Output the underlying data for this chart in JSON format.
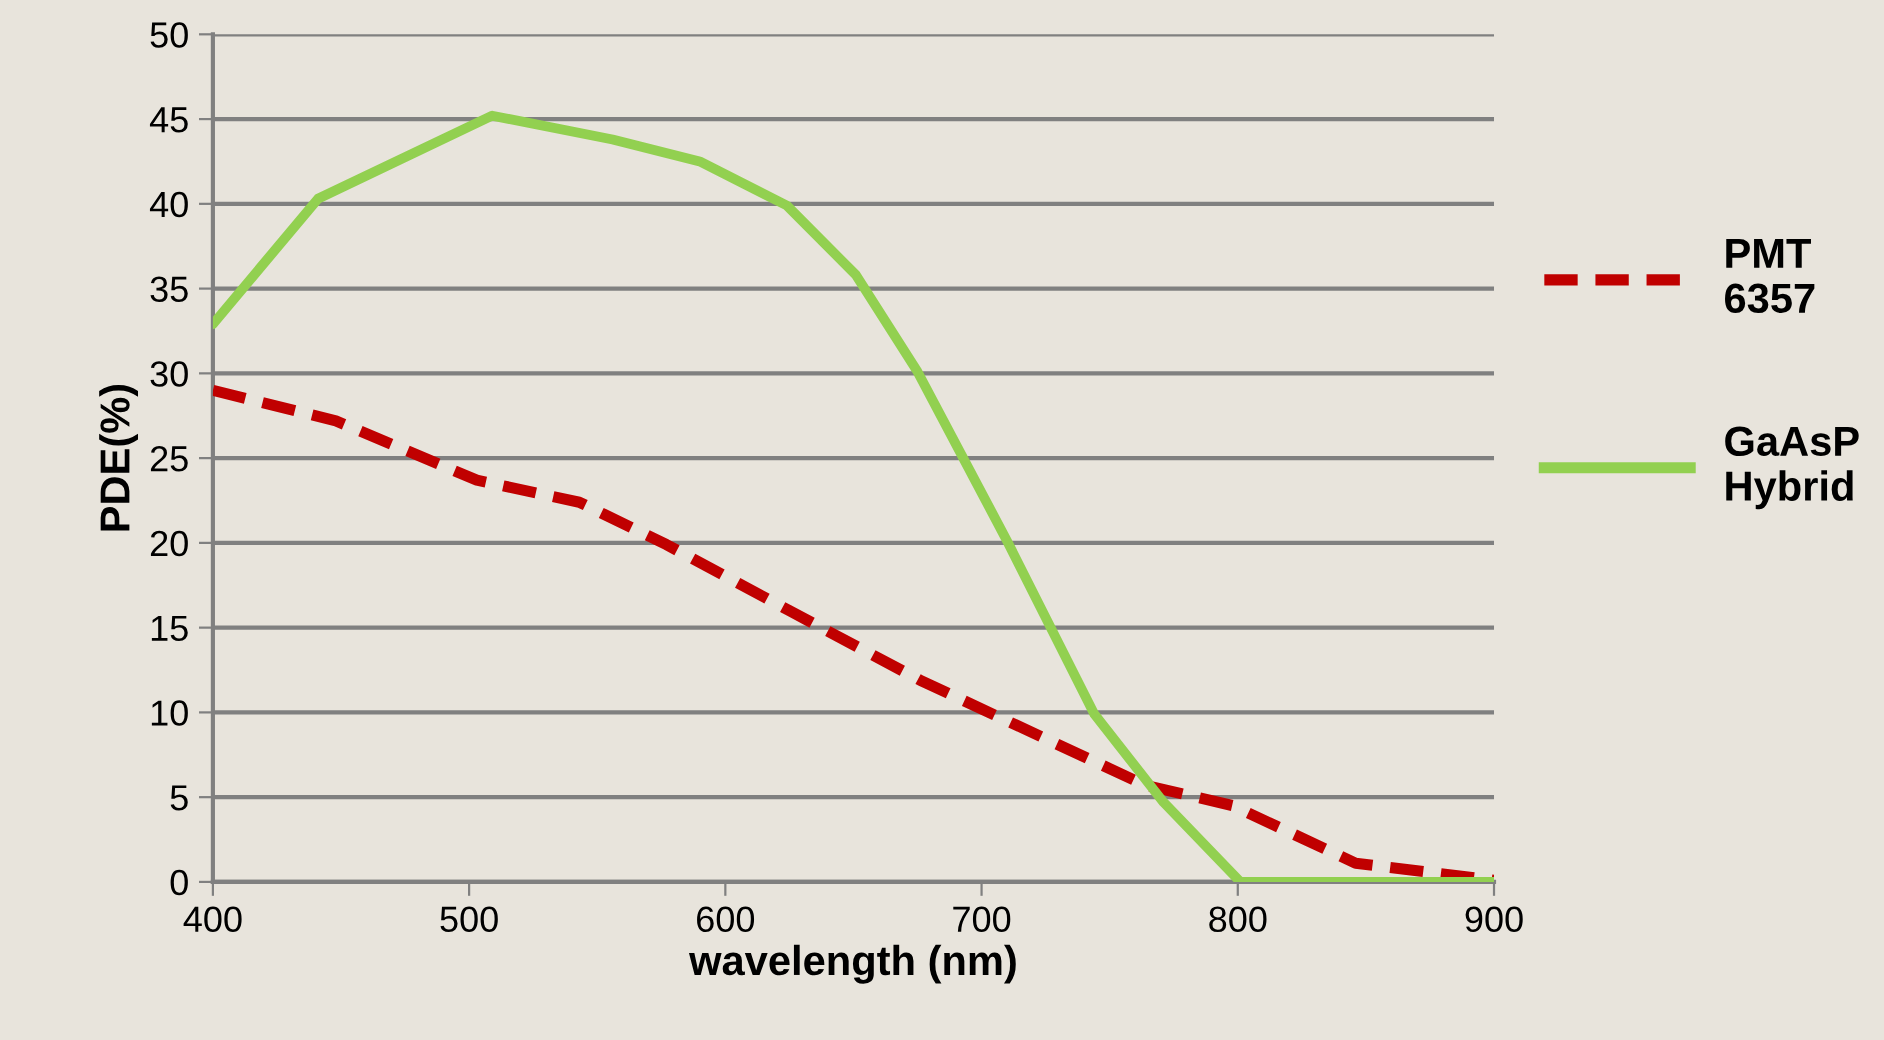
{
  "chart_data": {
    "type": "line",
    "xlabel": "wavelength (nm)",
    "ylabel": "PDE(%)",
    "xlim": [
      400,
      900
    ],
    "xticks": [
      400,
      500,
      600,
      700,
      800,
      900
    ],
    "ylim": [
      0,
      50
    ],
    "yticks": [
      0,
      5,
      10,
      15,
      20,
      25,
      30,
      35,
      40,
      45,
      50
    ],
    "grid": "y",
    "legend": "right",
    "series": [
      {
        "name": "PMT 6357",
        "color": "#c00000",
        "line_style": "dashed",
        "x": [
          400,
          448,
          503,
          543,
          577,
          625,
          676,
          727,
          764,
          798,
          846,
          900
        ],
        "values": [
          29,
          27.2,
          23.7,
          22.4,
          19.9,
          16,
          11.9,
          8.3,
          5.7,
          4.5,
          1.1,
          0.1
        ]
      },
      {
        "name": "GaAsP Hybrid",
        "color": "#92d050",
        "line_style": "solid",
        "x": [
          400,
          441,
          509,
          556,
          590,
          624,
          651,
          675,
          710,
          744,
          771,
          801,
          846,
          900
        ],
        "values": [
          32.9,
          40.3,
          45.2,
          43.8,
          42.5,
          39.9,
          35.8,
          30.1,
          20.1,
          9.9,
          4.7,
          0,
          0,
          0
        ]
      }
    ]
  }
}
